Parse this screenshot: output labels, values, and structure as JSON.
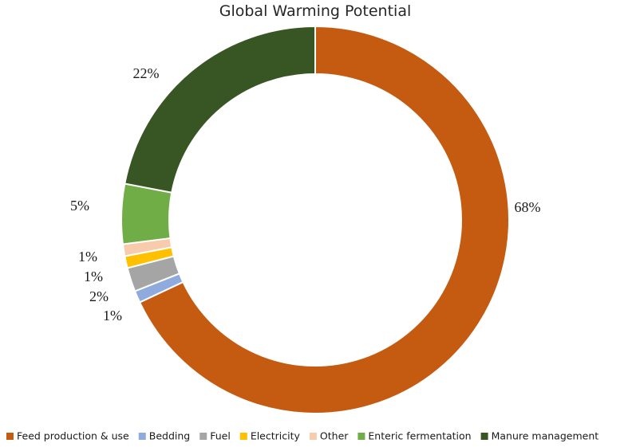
{
  "chart_data": {
    "type": "pie",
    "title": "Global Warming Potential",
    "legend_position": "bottom",
    "slices": [
      {
        "label": "Feed production & use",
        "value": 68,
        "value_label": "68%",
        "color": "#C55A11"
      },
      {
        "label": "Bedding",
        "value": 1,
        "value_label": "1%",
        "color": "#8FAADC"
      },
      {
        "label": "Fuel",
        "value": 2,
        "value_label": "2%",
        "color": "#A5A5A5"
      },
      {
        "label": "Electricity",
        "value": 1,
        "value_label": "1%",
        "color": "#FFC000"
      },
      {
        "label": "Other",
        "value": 1,
        "value_label": "1%",
        "color": "#F8CBAD"
      },
      {
        "label": "Enteric fermentation",
        "value": 5,
        "value_label": "5%",
        "color": "#70AD47"
      },
      {
        "label": "Manure management",
        "value": 22,
        "value_label": "22%",
        "color": "#375623"
      }
    ]
  }
}
